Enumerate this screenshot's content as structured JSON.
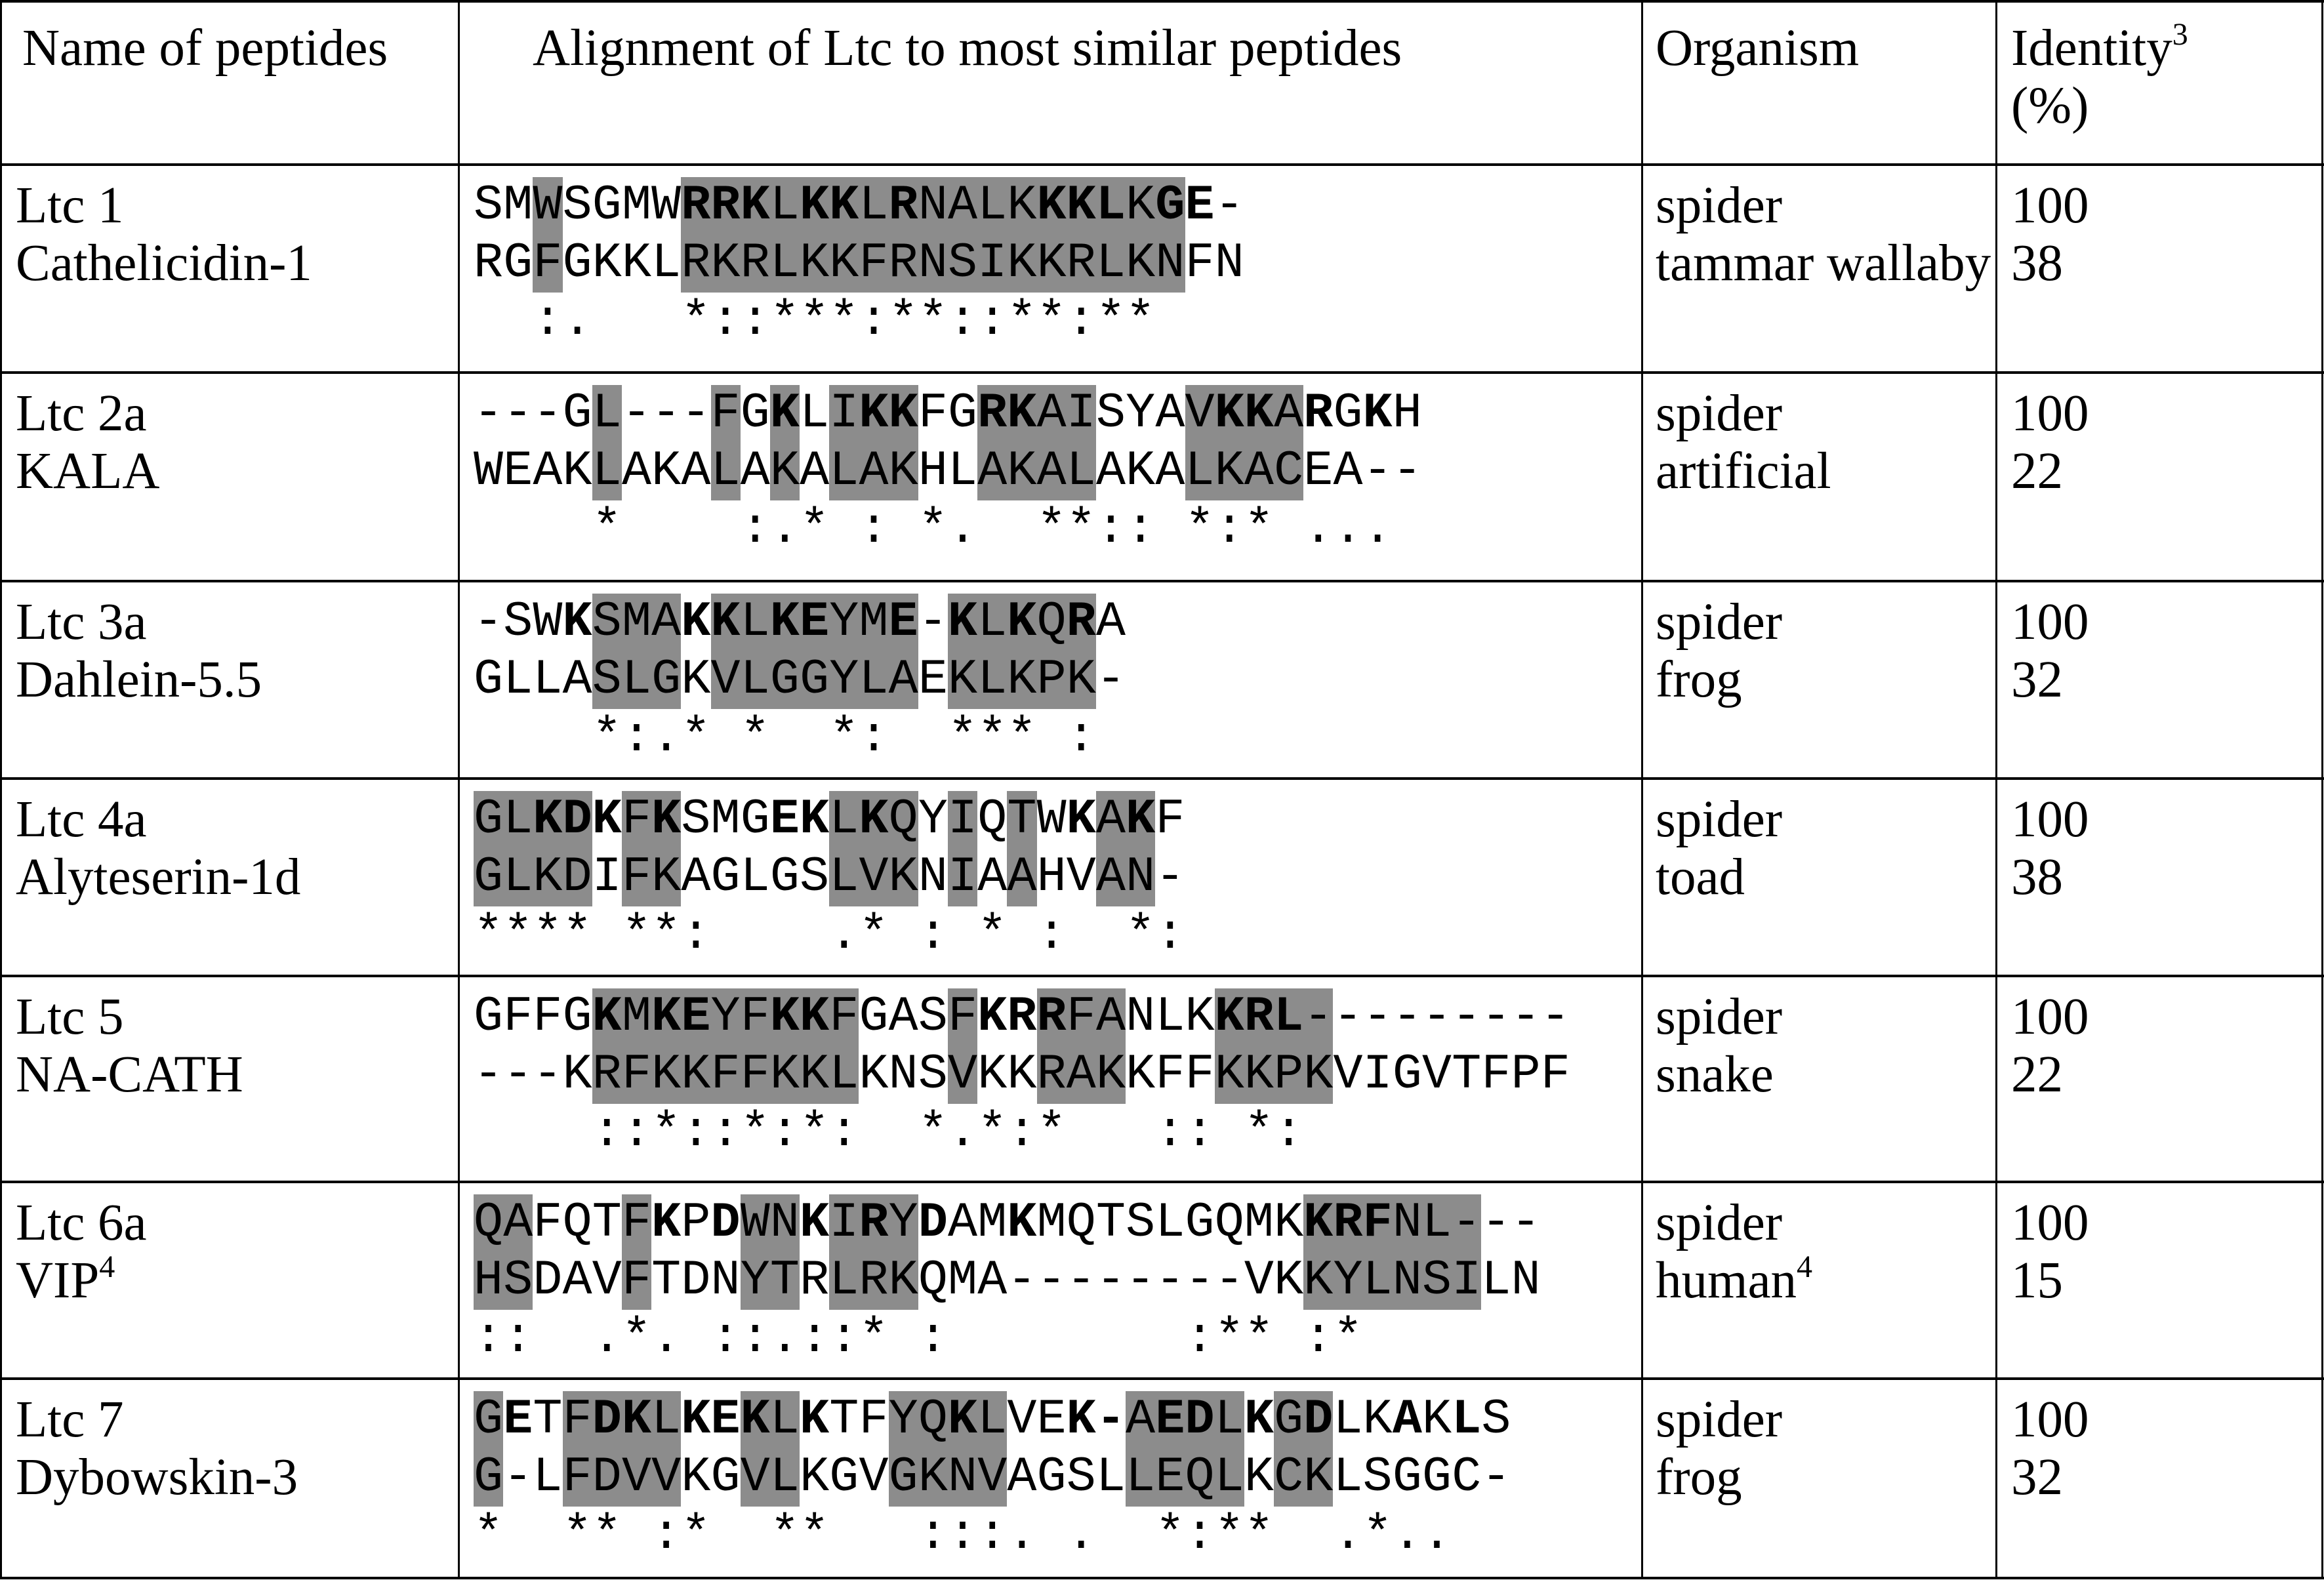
{
  "headers": {
    "name": "Name of peptides",
    "alignment": "Alignment of Ltc to most similar peptides",
    "organism": "Organism",
    "identity": "Identity",
    "identity_sup": "3",
    "identity_unit": "(%)"
  },
  "rows": [
    {
      "name1": "Ltc 1",
      "name2": "Cathelicidin-1",
      "name2_sup": "",
      "seq1": "SMWSGMWRRKLKKLRNALKKKLKGE-",
      "seq1_hl": "00100001111111111111111100",
      "seq1_bold": "00000001110110100001110110",
      "seq2": "RGFGKKLRKRLKKFRNSIKKRLKNFN",
      "seq2_hl": "00100001111111111111111100",
      "cons": "  :.   *::***:**::**:**   ",
      "org1": "spider",
      "org2": "tammar wallaby",
      "org2_sup": "",
      "id1": "100",
      "id2": "38"
    },
    {
      "name1": "Ltc 2a",
      "name2": "KALA",
      "name2_sup": "",
      "seq1": "---GL---FGKLIKKFGRKAISYAVKKARGKH",
      "seq1_hl": "0000100010101110011110001111000000",
      "seq1_bold": "00000000001001100110000001101010",
      "seq2": "WEAKLAKALAKALAKHLAKALAKALKACEA--",
      "seq2_hl": "0000100010101110011110001111000000",
      "cons": "    *    :.* : *.  **:: *:* ...  ",
      "org1": "spider",
      "org2": "artificial",
      "org2_sup": "",
      "id1": "100",
      "id2": "22"
    },
    {
      "name1": "Ltc 3a",
      "name2": "Dahlein-5.5",
      "name2_sup": "",
      "seq1": "-SWKSMAKKLKEYME-KLKQRA",
      "seq1_hl": "0000111011111110111110",
      "seq1_bold": "0001000110110010101010",
      "seq2": "GLLASLGKVLGGYLAEKLKPK-",
      "seq2_hl": "0000111011111110111110",
      "cons": "    *:.* *  *:  *** : ",
      "org1": "spider",
      "org2": "frog",
      "org2_sup": "",
      "id1": "100",
      "id2": "32"
    },
    {
      "name1": "Ltc 4a",
      "name2": "Alyteserin-1d",
      "name2_sup": "",
      "seq1": "GLKDKFKSMGEKLKQYIQTWKAKF",
      "seq1_hl": "111101100000111010100110",
      "seq1_bold": "001110100011010000001010",
      "seq2": "GLKDIFKAGLGSLVKNIAAHVAN-",
      "seq2_hl": "111101100000111010100110",
      "cons": "**** **:    .* : * :  *:",
      "org1": "spider",
      "org2": "toad",
      "org2_sup": "",
      "id1": "100",
      "id2": "38"
    },
    {
      "name1": "Ltc 5",
      "name2": "NA-CATH",
      "name2_sup": "",
      "seq1": "GFFGKMKEYFKKFGASFKRRFANLKKRL---------",
      "seq1_hl": "0000111111111000100111000111100000000",
      "seq1_bold": "0000101100110000011100000111000000000",
      "seq2": "---KRFKKFFKKLKNSVKKRAKKFFKKPKVIGVTFPF",
      "seq2_hl": "0000111111111000100111000111100000000",
      "cons": "    ::*::*:*:  *.*:*   :: *:         ",
      "org1": "spider",
      "org2": "snake",
      "org2_sup": "",
      "id1": "100",
      "id2": "22"
    },
    {
      "name1": "Ltc 6a",
      "name2": "VIP",
      "name2_sup": "4",
      "seq1": "QAFQTFKPDWNKIRYDAMKMQTSLGQMKKRFNL---",
      "seq1_hl": "11000100011011100000000000001111110000",
      "seq1_bold": "00000010100101010010000000001110000000",
      "seq2": "HSDAVFTDNYTRLRKQMA--------VKKYLNSILN",
      "seq2_hl": "11000100011011100000000000001111110000",
      "cons": "::  .*. ::.::* :        :** :*    ",
      "org1": "spider",
      "org2": "human",
      "org2_sup": "4",
      "id1": "100",
      "id2": "15"
    },
    {
      "name1": "Ltc 7",
      "name2": "Dybowskin-3",
      "name2_sup": "",
      "seq1": "GETFDKLKEKLKTFYQKLVEK-AEDLKGDLKAKLS",
      "seq1_hl": "10011110011000111100001111011000000",
      "seq1_bold": "01001101110100001000110110101001010",
      "seq2": "G-LFDVVKGVLKGVGKNVAGSLLEQLKCKLSGGC-",
      "seq2_hl": "10011110011000111100001111011000000",
      "cons": "*  ** :*  **   :::. .  *:**  .*.. ",
      "org1": "spider",
      "org2": "frog",
      "org2_sup": "",
      "id1": "100",
      "id2": "32"
    }
  ]
}
